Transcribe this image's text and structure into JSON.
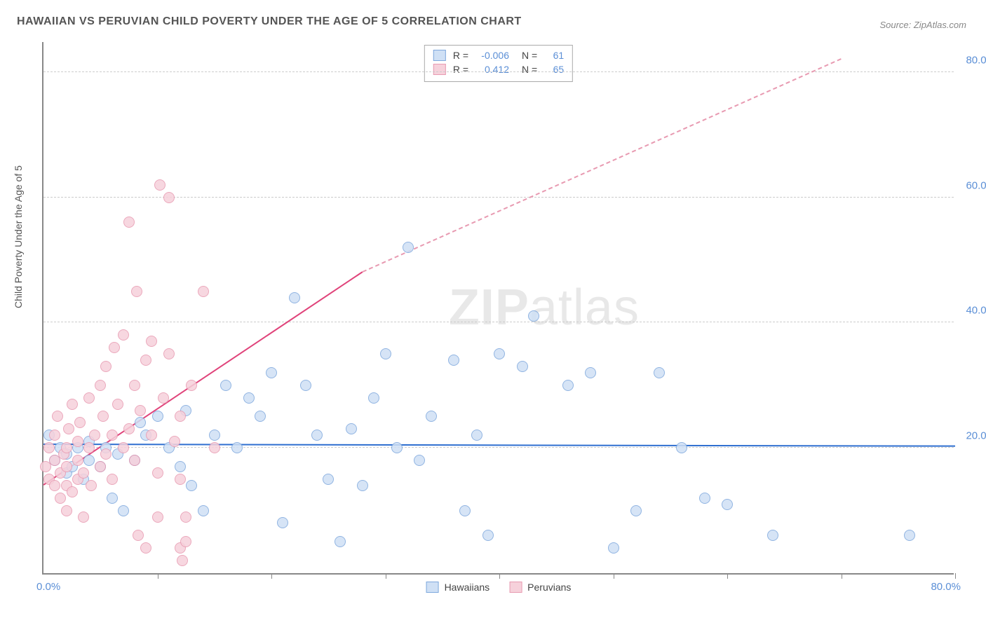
{
  "title": "HAWAIIAN VS PERUVIAN CHILD POVERTY UNDER THE AGE OF 5 CORRELATION CHART",
  "source_prefix": "Source: ",
  "source_name": "ZipAtlas.com",
  "ylabel": "Child Poverty Under the Age of 5",
  "watermark_a": "ZIP",
  "watermark_b": "atlas",
  "chart": {
    "type": "scatter",
    "xlim": [
      0,
      80
    ],
    "ylim": [
      0,
      85
    ],
    "x_ticks": [
      10,
      20,
      30,
      40,
      50,
      60,
      70,
      80
    ],
    "y_grid": [
      20,
      40,
      60,
      80
    ],
    "x_origin_label": "0.0%",
    "x_max_label": "80.0%",
    "y_labels": [
      {
        "v": 20,
        "t": "20.0%"
      },
      {
        "v": 40,
        "t": "40.0%"
      },
      {
        "v": 60,
        "t": "60.0%"
      },
      {
        "v": 80,
        "t": "80.0%"
      }
    ],
    "background_color": "#ffffff",
    "grid_color": "#cccccc",
    "axis_color": "#888888",
    "axis_label_color": "#5b8fd6",
    "series": [
      {
        "name": "Hawaiians",
        "color_fill": "#cfe0f5",
        "color_stroke": "#7ea8dd",
        "marker_radius": 8,
        "R": "-0.006",
        "N": "61",
        "regression": {
          "x1": 0,
          "y1": 20.5,
          "x2": 80,
          "y2": 20.2,
          "color": "#2f6fd0",
          "dash_from_x": null
        },
        "points": [
          [
            0.5,
            22
          ],
          [
            1,
            18
          ],
          [
            1.5,
            20
          ],
          [
            2,
            16
          ],
          [
            2,
            19
          ],
          [
            2.5,
            17
          ],
          [
            3,
            20
          ],
          [
            3.5,
            15
          ],
          [
            4,
            18
          ],
          [
            4,
            21
          ],
          [
            5,
            17
          ],
          [
            5.5,
            20
          ],
          [
            6,
            12
          ],
          [
            6.5,
            19
          ],
          [
            7,
            10
          ],
          [
            8,
            18
          ],
          [
            8.5,
            24
          ],
          [
            9,
            22
          ],
          [
            10,
            25
          ],
          [
            11,
            20
          ],
          [
            12,
            17
          ],
          [
            12.5,
            26
          ],
          [
            13,
            14
          ],
          [
            14,
            10
          ],
          [
            15,
            22
          ],
          [
            16,
            30
          ],
          [
            17,
            20
          ],
          [
            18,
            28
          ],
          [
            19,
            25
          ],
          [
            20,
            32
          ],
          [
            21,
            8
          ],
          [
            22,
            44
          ],
          [
            23,
            30
          ],
          [
            24,
            22
          ],
          [
            25,
            15
          ],
          [
            26,
            5
          ],
          [
            27,
            23
          ],
          [
            28,
            14
          ],
          [
            29,
            28
          ],
          [
            30,
            35
          ],
          [
            31,
            20
          ],
          [
            32,
            52
          ],
          [
            33,
            18
          ],
          [
            34,
            25
          ],
          [
            36,
            34
          ],
          [
            37,
            10
          ],
          [
            38,
            22
          ],
          [
            39,
            6
          ],
          [
            40,
            35
          ],
          [
            42,
            33
          ],
          [
            43,
            41
          ],
          [
            46,
            30
          ],
          [
            48,
            32
          ],
          [
            50,
            4
          ],
          [
            52,
            10
          ],
          [
            54,
            32
          ],
          [
            56,
            20
          ],
          [
            58,
            12
          ],
          [
            60,
            11
          ],
          [
            64,
            6
          ],
          [
            76,
            6
          ]
        ]
      },
      {
        "name": "Peruvians",
        "color_fill": "#f6d1db",
        "color_stroke": "#e89ab1",
        "marker_radius": 8,
        "R": "0.412",
        "N": "65",
        "regression": {
          "x1": 0,
          "y1": 14,
          "x2": 28,
          "y2": 48,
          "color": "#e0437a",
          "dash_from_x": 28,
          "dash_to_x": 70,
          "dash_to_y": 82
        },
        "points": [
          [
            0.2,
            17
          ],
          [
            0.5,
            15
          ],
          [
            0.5,
            20
          ],
          [
            1,
            14
          ],
          [
            1,
            18
          ],
          [
            1,
            22
          ],
          [
            1.2,
            25
          ],
          [
            1.5,
            12
          ],
          [
            1.5,
            16
          ],
          [
            1.8,
            19
          ],
          [
            2,
            10
          ],
          [
            2,
            14
          ],
          [
            2,
            17
          ],
          [
            2,
            20
          ],
          [
            2.2,
            23
          ],
          [
            2.5,
            13
          ],
          [
            2.5,
            27
          ],
          [
            3,
            15
          ],
          [
            3,
            18
          ],
          [
            3,
            21
          ],
          [
            3.2,
            24
          ],
          [
            3.5,
            9
          ],
          [
            3.5,
            16
          ],
          [
            4,
            20
          ],
          [
            4,
            28
          ],
          [
            4.2,
            14
          ],
          [
            4.5,
            22
          ],
          [
            5,
            17
          ],
          [
            5,
            30
          ],
          [
            5.2,
            25
          ],
          [
            5.5,
            19
          ],
          [
            5.5,
            33
          ],
          [
            6,
            15
          ],
          [
            6,
            22
          ],
          [
            6.2,
            36
          ],
          [
            6.5,
            27
          ],
          [
            7,
            20
          ],
          [
            7,
            38
          ],
          [
            7.5,
            23
          ],
          [
            7.5,
            56
          ],
          [
            8,
            18
          ],
          [
            8,
            30
          ],
          [
            8.2,
            45
          ],
          [
            8.3,
            6
          ],
          [
            8.5,
            26
          ],
          [
            9,
            34
          ],
          [
            9,
            4
          ],
          [
            9.5,
            22
          ],
          [
            9.5,
            37
          ],
          [
            10,
            16
          ],
          [
            10,
            9
          ],
          [
            10.2,
            62
          ],
          [
            10.5,
            28
          ],
          [
            11,
            60
          ],
          [
            11,
            35
          ],
          [
            11.5,
            21
          ],
          [
            12,
            25
          ],
          [
            12,
            15
          ],
          [
            12,
            4
          ],
          [
            12.2,
            2
          ],
          [
            12.5,
            5
          ],
          [
            12.5,
            9
          ],
          [
            13,
            30
          ],
          [
            14,
            45
          ],
          [
            15,
            20
          ]
        ]
      }
    ],
    "legend": [
      {
        "label": "Hawaiians",
        "fill": "#cfe0f5",
        "stroke": "#7ea8dd"
      },
      {
        "label": "Peruvians",
        "fill": "#f6d1db",
        "stroke": "#e89ab1"
      }
    ]
  }
}
